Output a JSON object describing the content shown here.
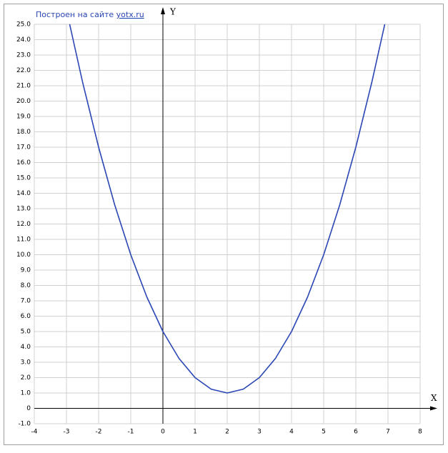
{
  "chart_data": {
    "type": "line",
    "credit": "Построен на сайте",
    "link": "yotx.ru",
    "xlabel": "X",
    "ylabel": "Y",
    "x": [
      -2.9,
      -2.5,
      -2,
      -1.5,
      -1,
      -0.5,
      0,
      0.5,
      1,
      1.5,
      2,
      2.5,
      3,
      3.5,
      4,
      4.5,
      5,
      5.5,
      6,
      6.5,
      6.9
    ],
    "series": [
      {
        "color": "#2a46b4",
        "values": [
          25,
          21.25,
          17,
          13.25,
          10,
          7.25,
          5,
          3.25,
          2,
          1.25,
          1,
          1.25,
          2,
          3.25,
          5,
          7.25,
          10,
          13.25,
          17,
          21.25,
          25
        ]
      }
    ],
    "xlim": [
      -4,
      8
    ],
    "xticks": [
      -4,
      -3,
      -2,
      -1,
      0,
      1,
      2,
      3,
      4,
      5,
      6,
      7,
      8
    ],
    "ylim": [
      -1,
      25
    ],
    "yticks": [
      {
        "value": -1,
        "label": "-1.0"
      },
      0,
      {
        "value": 1,
        "label": "1.0"
      },
      {
        "value": 2,
        "label": "2.0"
      },
      {
        "value": 3,
        "label": "3.0"
      },
      {
        "value": 4,
        "label": "4.0"
      },
      {
        "value": 5,
        "label": "5.0"
      },
      {
        "value": 6,
        "label": "6.0"
      },
      {
        "value": 7,
        "label": "7.0"
      },
      {
        "value": 8,
        "label": "8.0"
      },
      {
        "value": 9,
        "label": "9.0"
      },
      {
        "value": 10,
        "label": "10.0"
      },
      {
        "value": 11,
        "label": "11.0"
      },
      {
        "value": 12,
        "label": "12.0"
      },
      {
        "value": 13,
        "label": "13.0"
      },
      {
        "value": 14,
        "label": "14.0"
      },
      {
        "value": 15,
        "label": "15.0"
      },
      {
        "value": 16,
        "label": "16.0"
      },
      {
        "value": 17,
        "label": "17.0"
      },
      {
        "value": 18,
        "label": "18.0"
      },
      {
        "value": 19,
        "label": "19.0"
      },
      {
        "value": 20,
        "label": "20.0"
      },
      {
        "value": 21,
        "label": "21.0"
      },
      {
        "value": 22,
        "label": "22.0"
      },
      {
        "value": 23,
        "label": "23.0"
      },
      {
        "value": 24,
        "label": "24.0"
      },
      {
        "value": 25,
        "label": "25.0"
      }
    ],
    "grid": true
  }
}
